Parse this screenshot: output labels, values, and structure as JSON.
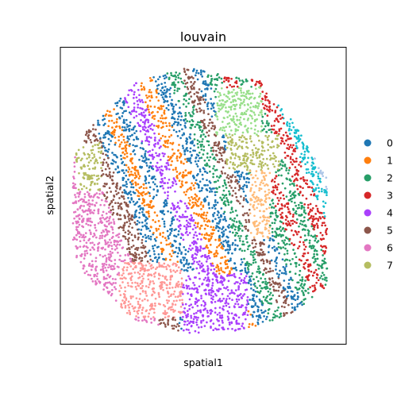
{
  "chart_data": {
    "type": "scatter",
    "title": "louvain",
    "xlabel": "spatial1",
    "ylabel": "spatial2",
    "grid": false,
    "legend_position": "right",
    "legend": [
      {
        "label": "0",
        "color": "#1f77b4"
      },
      {
        "label": "1",
        "color": "#ff7f0e"
      },
      {
        "label": "2",
        "color": "#279e68"
      },
      {
        "label": "3",
        "color": "#d62728"
      },
      {
        "label": "4",
        "color": "#aa40fc"
      },
      {
        "label": "5",
        "color": "#8c564b"
      },
      {
        "label": "6",
        "color": "#e377c2"
      },
      {
        "label": "7",
        "color": "#b5bd61"
      }
    ],
    "extra_colors": [
      "#17becf",
      "#aec7e8",
      "#ffbb78",
      "#98df8a",
      "#ff9896"
    ]
  }
}
